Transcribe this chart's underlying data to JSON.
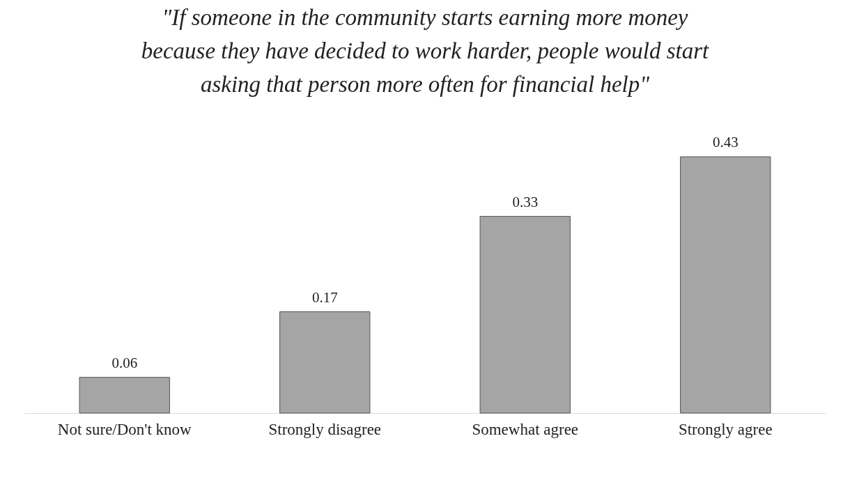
{
  "chart_data": {
    "type": "bar",
    "title": "\"If someone in the community starts earning more money\nbecause they have decided to work harder, people would start\nasking that person more often for financial help\"",
    "categories": [
      "Not sure/Don't know",
      "Strongly disagree",
      "Somewhat agree",
      "Strongly agree"
    ],
    "values": [
      0.06,
      0.17,
      0.33,
      0.43
    ],
    "color": "#a5a5a5",
    "data_labels": true,
    "tick_labels": "x",
    "grid": false
  }
}
